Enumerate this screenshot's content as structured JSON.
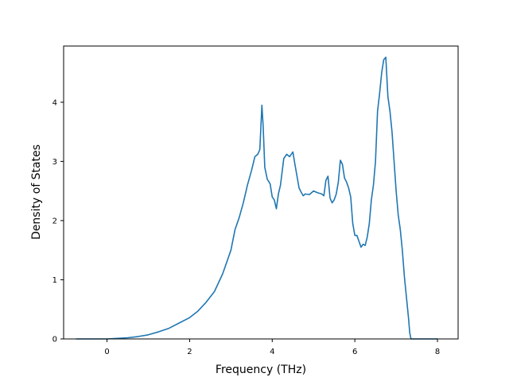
{
  "chart_data": {
    "type": "line",
    "title": "",
    "xlabel": "Frequency (THz)",
    "ylabel": "Density of States",
    "xlim": [
      -1.05,
      8.5
    ],
    "ylim": [
      0,
      4.95
    ],
    "xticks": [
      0,
      2,
      4,
      6,
      8
    ],
    "yticks": [
      0,
      1,
      2,
      3,
      4
    ],
    "grid": false,
    "line_color": "#1f77b4",
    "series": [
      {
        "x": [
          -0.75,
          -0.5,
          -0.25,
          0.0,
          0.25,
          0.5,
          0.75,
          1.0,
          1.25,
          1.5,
          1.75,
          2.0,
          2.2,
          2.4,
          2.6,
          2.8,
          3.0,
          3.1,
          3.2,
          3.3,
          3.4,
          3.5,
          3.58,
          3.65,
          3.7,
          3.75,
          3.78,
          3.82,
          3.88,
          3.95,
          4.0,
          4.05,
          4.1,
          4.15,
          4.2,
          4.28,
          4.35,
          4.42,
          4.5,
          4.55,
          4.6,
          4.65,
          4.7,
          4.75,
          4.8,
          4.9,
          5.0,
          5.1,
          5.2,
          5.25,
          5.3,
          5.35,
          5.4,
          5.45,
          5.5,
          5.55,
          5.6,
          5.65,
          5.7,
          5.75,
          5.8,
          5.85,
          5.9,
          5.95,
          6.0,
          6.05,
          6.1,
          6.15,
          6.2,
          6.25,
          6.3,
          6.35,
          6.4,
          6.45,
          6.5,
          6.55,
          6.6,
          6.65,
          6.7,
          6.75,
          6.8,
          6.85,
          6.9,
          6.95,
          7.0,
          7.05,
          7.1,
          7.15,
          7.2,
          7.25,
          7.3,
          7.33,
          7.36,
          7.4,
          7.6,
          7.8,
          8.0
        ],
        "y": [
          0.0,
          0.0,
          0.0,
          0.0,
          0.01,
          0.02,
          0.04,
          0.07,
          0.12,
          0.18,
          0.27,
          0.36,
          0.47,
          0.62,
          0.8,
          1.1,
          1.5,
          1.85,
          2.05,
          2.3,
          2.6,
          2.85,
          3.08,
          3.12,
          3.2,
          3.95,
          3.6,
          2.9,
          2.7,
          2.62,
          2.4,
          2.35,
          2.2,
          2.45,
          2.6,
          3.05,
          3.12,
          3.08,
          3.16,
          2.95,
          2.75,
          2.55,
          2.48,
          2.42,
          2.45,
          2.44,
          2.5,
          2.47,
          2.45,
          2.42,
          2.68,
          2.75,
          2.38,
          2.3,
          2.35,
          2.45,
          2.65,
          3.02,
          2.95,
          2.72,
          2.65,
          2.55,
          2.4,
          1.95,
          1.75,
          1.75,
          1.65,
          1.55,
          1.6,
          1.58,
          1.72,
          1.95,
          2.35,
          2.6,
          3.0,
          3.85,
          4.15,
          4.5,
          4.72,
          4.76,
          4.1,
          3.85,
          3.5,
          3.0,
          2.5,
          2.1,
          1.85,
          1.5,
          1.05,
          0.7,
          0.35,
          0.1,
          0.0,
          0.0,
          0.0,
          0.0,
          0.0
        ]
      }
    ]
  }
}
